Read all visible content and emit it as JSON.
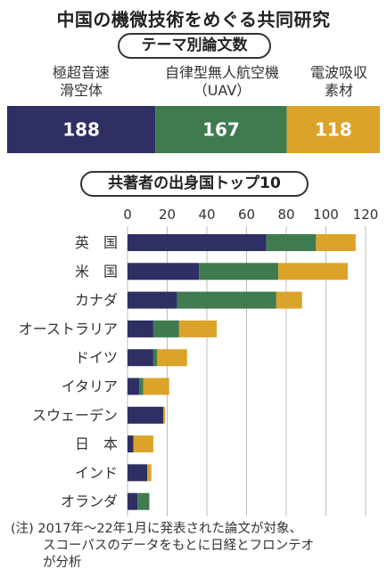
{
  "header": {
    "title": "中国の機微技術をめぐる共同研究",
    "section1_title": "テーマ別論文数",
    "section2_title": "共著者の出身国トップ10"
  },
  "categories_top": [
    {
      "lines": [
        "極超音速",
        "滑空体"
      ]
    },
    {
      "lines": [
        "自律型無人航空機",
        "（UAV）"
      ]
    },
    {
      "lines": [
        "電波吸収",
        "素材"
      ]
    }
  ],
  "note": {
    "lines": [
      "(注) 2017年～22年1月に発表された論文が対象、",
      "スコーパスのデータをもとに日経とフロンテオ",
      "が分析"
    ]
  },
  "colors": {
    "hypersonic": "#2f2f63",
    "uav": "#3f7b4f",
    "absorber": "#dca32b"
  },
  "chart_data": [
    {
      "type": "bar",
      "orientation": "horizontal-stacked",
      "categories": [
        "テーマ別論文数"
      ],
      "series": [
        {
          "name": "極超音速滑空体",
          "values": [
            188
          ]
        },
        {
          "name": "自律型無人航空機（UAV）",
          "values": [
            167
          ]
        },
        {
          "name": "電波吸収素材",
          "values": [
            118
          ]
        }
      ],
      "data_labels": [
        "188",
        "167",
        "118"
      ]
    },
    {
      "type": "bar",
      "orientation": "horizontal-stacked",
      "categories": [
        "英　国",
        "米　国",
        "カナダ",
        "オーストラリア",
        "ドイツ",
        "イタリア",
        "スウェーデン",
        "日　本",
        "インド",
        "オランダ"
      ],
      "series": [
        {
          "name": "極超音速滑空体",
          "values": [
            70,
            36,
            25,
            13,
            13,
            6,
            18,
            3,
            10,
            5
          ]
        },
        {
          "name": "自律型無人航空機（UAV）",
          "values": [
            25,
            40,
            50,
            13,
            2,
            2,
            0,
            0,
            0,
            6
          ]
        },
        {
          "name": "電波吸収素材",
          "values": [
            20,
            35,
            13,
            19,
            15,
            13,
            1,
            10,
            2,
            0
          ]
        }
      ],
      "xlim": [
        0,
        120
      ],
      "xticks": [
        "0",
        "20",
        "40",
        "60",
        "80",
        "100",
        "120"
      ],
      "grid": true
    }
  ]
}
